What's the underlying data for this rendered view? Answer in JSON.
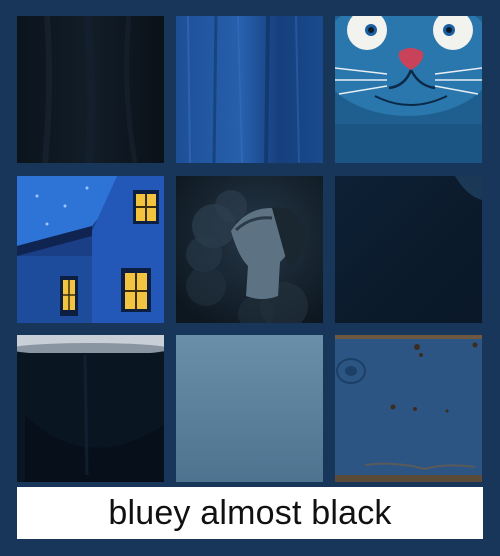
{
  "caption": {
    "text": "bluey almost black"
  },
  "colors": {
    "background": "#17365a",
    "caption_bg": "#ffffff",
    "caption_text": "#111111"
  },
  "swatches": [
    {
      "subject": "dark fabric texture",
      "color": "#0a121b"
    },
    {
      "subject": "blue painted wood texture",
      "color": "#1e4f95"
    },
    {
      "subject": "cartoon blue cat",
      "color": "#1e5f8f"
    },
    {
      "subject": "blue house painting with lit windows",
      "color": "#1f5fb0"
    },
    {
      "subject": "woman face in smoke",
      "color": "#101b24"
    },
    {
      "subject": "dark navy glossy surface",
      "color": "#0c1d30"
    },
    {
      "subject": "dark bowl",
      "color": "#0a1522"
    },
    {
      "subject": "slate blue gradient",
      "color": "#5a7f98"
    },
    {
      "subject": "rusty blue metal",
      "color": "#2c5584"
    }
  ]
}
